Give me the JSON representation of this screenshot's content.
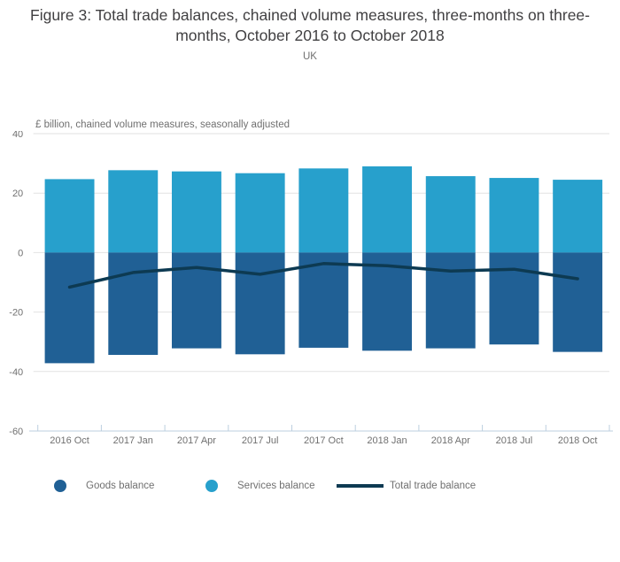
{
  "chart_data": {
    "type": "bar",
    "subtype": "stacked-positive-negative-bars-with-line-overlay",
    "title": "Figure 3: Total trade balances, chained volume measures, three-months on three-months, October 2016 to October 2018",
    "subtitle": "UK",
    "ylabel": "£ billion, chained volume measures, seasonally adjusted",
    "xlabel": "",
    "categories": [
      "2016 Oct",
      "2017 Jan",
      "2017 Apr",
      "2017 Jul",
      "2017 Oct",
      "2018 Jan",
      "2018 Apr",
      "2018 Jul",
      "2018 Oct"
    ],
    "series": [
      {
        "name": "Goods balance",
        "type": "bar",
        "color": "#206095",
        "values": [
          -37.2,
          -34.4,
          -32.2,
          -34.2,
          -32.0,
          -33.0,
          -32.2,
          -30.9,
          -33.4
        ]
      },
      {
        "name": "Services balance",
        "type": "bar",
        "color": "#27a0cc",
        "values": [
          24.7,
          27.7,
          27.3,
          26.7,
          28.3,
          29.0,
          25.7,
          25.1,
          24.5
        ]
      },
      {
        "name": "Total trade balance",
        "type": "line",
        "color": "#0d3a52",
        "values": [
          -11.6,
          -6.7,
          -5.0,
          -7.3,
          -3.7,
          -4.4,
          -6.2,
          -5.6,
          -8.8
        ]
      }
    ],
    "ylim": [
      -60,
      40
    ],
    "yticks": [
      40,
      20,
      0,
      -20,
      -40,
      -60
    ],
    "grid": true,
    "legend_position": "bottom"
  }
}
